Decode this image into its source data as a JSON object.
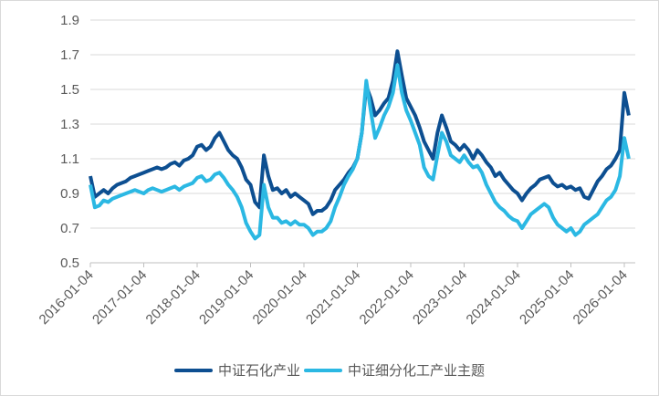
{
  "chart_data": {
    "type": "line",
    "title": "",
    "xlabel": "",
    "ylabel": "",
    "ylim": [
      0.5,
      1.9
    ],
    "yticks": [
      "1.9",
      "1.7",
      "1.5",
      "1.3",
      "1.1",
      "0.9",
      "0.7",
      "0.5"
    ],
    "xticks": [
      "2016-01-04",
      "2017-01-04",
      "2018-01-04",
      "2019-01-04",
      "2020-01-04",
      "2021-01-04",
      "2022-01-04",
      "2023-01-04",
      "2024-01-04",
      "2025-01-04",
      "2026-01-04"
    ],
    "grid": "horizontal",
    "legend_position": "bottom",
    "x": [
      "2016-01",
      "2016-02",
      "2016-03",
      "2016-04",
      "2016-05",
      "2016-06",
      "2016-07",
      "2016-08",
      "2016-09",
      "2016-10",
      "2016-11",
      "2016-12",
      "2017-01",
      "2017-02",
      "2017-03",
      "2017-04",
      "2017-05",
      "2017-06",
      "2017-07",
      "2017-08",
      "2017-09",
      "2017-10",
      "2017-11",
      "2017-12",
      "2018-01",
      "2018-02",
      "2018-03",
      "2018-04",
      "2018-05",
      "2018-06",
      "2018-07",
      "2018-08",
      "2018-09",
      "2018-10",
      "2018-11",
      "2018-12",
      "2019-01",
      "2019-02",
      "2019-03",
      "2019-04",
      "2019-05",
      "2019-06",
      "2019-07",
      "2019-08",
      "2019-09",
      "2019-10",
      "2019-11",
      "2019-12",
      "2020-01",
      "2020-02",
      "2020-03",
      "2020-04",
      "2020-05",
      "2020-06",
      "2020-07",
      "2020-08",
      "2020-09",
      "2020-10",
      "2020-11",
      "2020-12",
      "2021-01",
      "2021-02",
      "2021-03",
      "2021-04",
      "2021-05",
      "2021-06",
      "2021-07",
      "2021-08",
      "2021-09",
      "2021-10",
      "2021-11",
      "2021-12",
      "2022-01",
      "2022-02",
      "2022-03",
      "2022-04",
      "2022-05",
      "2022-06",
      "2022-07",
      "2022-08",
      "2022-09",
      "2022-10",
      "2022-11",
      "2022-12",
      "2023-01",
      "2023-02",
      "2023-03",
      "2023-04",
      "2023-05",
      "2023-06",
      "2023-07",
      "2023-08",
      "2023-09",
      "2023-10",
      "2023-11",
      "2023-12",
      "2024-01",
      "2024-02",
      "2024-03",
      "2024-04",
      "2024-05",
      "2024-06",
      "2024-07",
      "2024-08",
      "2024-09",
      "2024-10",
      "2024-11",
      "2024-12",
      "2025-01",
      "2025-02",
      "2025-03",
      "2025-04",
      "2025-05",
      "2025-06",
      "2025-07",
      "2025-08",
      "2025-09",
      "2025-10",
      "2025-11",
      "2025-12",
      "2026-01",
      "2026-02"
    ],
    "series": [
      {
        "name": "中证石化产业",
        "color": "#0d4f91",
        "values": [
          1.0,
          0.88,
          0.9,
          0.92,
          0.9,
          0.93,
          0.95,
          0.96,
          0.97,
          0.99,
          1.0,
          1.01,
          1.02,
          1.03,
          1.04,
          1.05,
          1.04,
          1.05,
          1.07,
          1.08,
          1.06,
          1.09,
          1.1,
          1.12,
          1.17,
          1.18,
          1.15,
          1.17,
          1.22,
          1.25,
          1.2,
          1.15,
          1.12,
          1.1,
          1.05,
          0.98,
          0.95,
          0.85,
          0.82,
          1.12,
          1.0,
          0.92,
          0.93,
          0.9,
          0.92,
          0.88,
          0.9,
          0.88,
          0.86,
          0.84,
          0.78,
          0.8,
          0.8,
          0.82,
          0.86,
          0.92,
          0.95,
          0.98,
          1.02,
          1.05,
          1.1,
          1.25,
          1.52,
          1.45,
          1.35,
          1.38,
          1.42,
          1.45,
          1.55,
          1.72,
          1.58,
          1.45,
          1.4,
          1.35,
          1.28,
          1.2,
          1.15,
          1.1,
          1.25,
          1.35,
          1.28,
          1.2,
          1.18,
          1.15,
          1.18,
          1.15,
          1.1,
          1.15,
          1.12,
          1.08,
          1.05,
          1.0,
          1.02,
          0.98,
          0.95,
          0.92,
          0.9,
          0.86,
          0.9,
          0.93,
          0.95,
          0.98,
          0.99,
          1.0,
          0.96,
          0.94,
          0.95,
          0.93,
          0.94,
          0.92,
          0.93,
          0.88,
          0.87,
          0.92,
          0.97,
          1.0,
          1.04,
          1.06,
          1.1,
          1.15,
          1.48,
          1.35
        ]
      },
      {
        "name": "中证细分化工产业主题",
        "color": "#2bb8e3",
        "values": [
          0.95,
          0.82,
          0.83,
          0.86,
          0.85,
          0.87,
          0.88,
          0.89,
          0.9,
          0.91,
          0.92,
          0.91,
          0.9,
          0.92,
          0.93,
          0.92,
          0.91,
          0.92,
          0.93,
          0.94,
          0.92,
          0.94,
          0.95,
          0.96,
          0.99,
          1.0,
          0.97,
          0.98,
          1.01,
          1.02,
          0.99,
          0.95,
          0.92,
          0.88,
          0.82,
          0.73,
          0.68,
          0.64,
          0.66,
          0.95,
          0.82,
          0.76,
          0.76,
          0.73,
          0.74,
          0.72,
          0.74,
          0.72,
          0.72,
          0.7,
          0.66,
          0.68,
          0.68,
          0.7,
          0.74,
          0.82,
          0.88,
          0.95,
          1.0,
          1.04,
          1.1,
          1.25,
          1.55,
          1.38,
          1.22,
          1.28,
          1.35,
          1.4,
          1.48,
          1.64,
          1.48,
          1.38,
          1.32,
          1.25,
          1.18,
          1.05,
          1.0,
          0.98,
          1.12,
          1.25,
          1.2,
          1.12,
          1.1,
          1.08,
          1.12,
          1.08,
          1.05,
          1.06,
          1.02,
          0.95,
          0.9,
          0.85,
          0.82,
          0.8,
          0.77,
          0.75,
          0.74,
          0.7,
          0.74,
          0.78,
          0.8,
          0.82,
          0.84,
          0.82,
          0.76,
          0.72,
          0.7,
          0.68,
          0.7,
          0.66,
          0.68,
          0.72,
          0.74,
          0.76,
          0.78,
          0.82,
          0.86,
          0.88,
          0.92,
          1.0,
          1.22,
          1.1
        ]
      }
    ]
  }
}
